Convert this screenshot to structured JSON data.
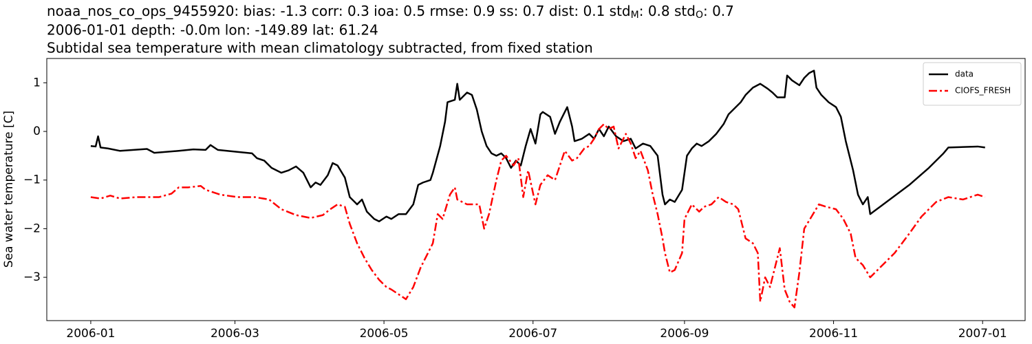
{
  "chart_data": {
    "type": "line",
    "title_parts": [
      "noaa_nos_co_ops_9455920: bias: -1.3  corr: 0.3  ioa: 0.5  rmse: 0.9  ss: 0.7  dist: 0.1  std",
      "M",
      ": 0.8  std",
      "O",
      ": 0.7"
    ],
    "subtitle": "2006-01-01 depth: -0.0m lon: -149.89 lat: 61.24",
    "caption": "Subtidal sea temperature with mean climatology subtracted, from fixed station",
    "y_label": "Sea water temperature [C]",
    "xlim": [
      -18,
      382.4
    ],
    "xticks": [
      {
        "value": 0,
        "label": "2006-01"
      },
      {
        "value": 59,
        "label": "2006-03"
      },
      {
        "value": 120,
        "label": "2006-05"
      },
      {
        "value": 181,
        "label": "2006-07"
      },
      {
        "value": 243,
        "label": "2006-09"
      },
      {
        "value": 304,
        "label": "2006-11"
      },
      {
        "value": 365,
        "label": "2007-01"
      }
    ],
    "ylim": [
      -3.89,
      1.5
    ],
    "yticks": [
      {
        "value": -3,
        "label": "−3"
      },
      {
        "value": -2,
        "label": "−2"
      },
      {
        "value": -1,
        "label": "−1"
      },
      0,
      1
    ],
    "grid": false,
    "legend": "upper right",
    "series": [
      {
        "name": "data",
        "color": "#000000",
        "style": "solid",
        "x": [
          0,
          2,
          3,
          4,
          7,
          12,
          23,
          26,
          36,
          42,
          47,
          49,
          52,
          60,
          66,
          68,
          71,
          74,
          78,
          81,
          84,
          87,
          90,
          92,
          94,
          97,
          99,
          101,
          104,
          106,
          108,
          109,
          111,
          113,
          116,
          118,
          121,
          123,
          126,
          129,
          132,
          134,
          136,
          139,
          140,
          143,
          145,
          146,
          149,
          150,
          151,
          154,
          156,
          158,
          160,
          162,
          164,
          166,
          168,
          170,
          172,
          174,
          176,
          178,
          180,
          182,
          184,
          185,
          188,
          190,
          192,
          193,
          195,
          197,
          198,
          201,
          204,
          206,
          208,
          210,
          212,
          215,
          218,
          221,
          223,
          226,
          229,
          232,
          234,
          235,
          237,
          239,
          242,
          244,
          246,
          248,
          250,
          253,
          256,
          259,
          261,
          266,
          268,
          271,
          274,
          277,
          279,
          281,
          284,
          285,
          287,
          290,
          292,
          294,
          296,
          297,
          299,
          302,
          305,
          307,
          309,
          312,
          314,
          316,
          318,
          319,
          323,
          335,
          343,
          349,
          351,
          363,
          366
        ],
        "values": [
          -0.3,
          -0.31,
          -0.1,
          -0.33,
          -0.35,
          -0.4,
          -0.36,
          -0.44,
          -0.4,
          -0.37,
          -0.38,
          -0.28,
          -0.38,
          -0.42,
          -0.45,
          -0.55,
          -0.6,
          -0.75,
          -0.85,
          -0.8,
          -0.72,
          -0.85,
          -1.15,
          -1.05,
          -1.1,
          -0.9,
          -0.65,
          -0.7,
          -0.95,
          -1.35,
          -1.45,
          -1.5,
          -1.4,
          -1.65,
          -1.8,
          -1.85,
          -1.75,
          -1.8,
          -1.7,
          -1.7,
          -1.5,
          -1.1,
          -1.05,
          -1.0,
          -0.85,
          -0.3,
          0.2,
          0.6,
          0.65,
          0.98,
          0.65,
          0.8,
          0.75,
          0.45,
          0.0,
          -0.3,
          -0.45,
          -0.5,
          -0.45,
          -0.55,
          -0.75,
          -0.6,
          -0.7,
          -0.3,
          0.05,
          -0.25,
          0.35,
          0.4,
          0.3,
          -0.05,
          0.2,
          0.3,
          0.5,
          0.1,
          -0.2,
          -0.15,
          -0.05,
          -0.15,
          0.05,
          -0.1,
          0.1,
          -0.1,
          -0.2,
          -0.15,
          -0.35,
          -0.25,
          -0.3,
          -0.5,
          -1.3,
          -1.5,
          -1.4,
          -1.45,
          -1.2,
          -0.5,
          -0.35,
          -0.25,
          -0.3,
          -0.2,
          -0.05,
          0.15,
          0.35,
          0.6,
          0.75,
          0.9,
          0.98,
          0.88,
          0.8,
          0.7,
          0.7,
          1.15,
          1.05,
          0.95,
          1.1,
          1.2,
          1.25,
          0.9,
          0.75,
          0.6,
          0.5,
          0.3,
          -0.2,
          -0.8,
          -1.3,
          -1.5,
          -1.35,
          -1.7,
          -1.55,
          -1.1,
          -0.75,
          -0.45,
          -0.33,
          -0.31,
          -0.33
        ]
      },
      {
        "name": "CIOFS_FRESH",
        "color": "#ff0000",
        "style": "dashdot",
        "x": [
          0,
          4,
          8,
          12,
          19,
          28,
          33,
          36,
          40,
          45,
          47,
          53,
          60,
          67,
          73,
          78,
          84,
          90,
          95,
          98,
          101,
          104,
          106,
          109,
          112,
          115,
          118,
          121,
          123,
          126,
          129,
          132,
          135,
          137,
          140,
          142,
          144,
          147,
          149,
          150,
          154,
          159,
          161,
          163,
          166,
          168,
          170,
          173,
          175,
          177,
          179,
          182,
          184,
          187,
          190,
          192,
          194,
          197,
          199,
          202,
          204,
          206,
          208,
          210,
          212,
          214,
          216,
          219,
          221,
          223,
          225,
          228,
          230,
          232,
          234,
          235,
          237,
          239,
          242,
          243,
          246,
          249,
          251,
          254,
          257,
          260,
          263,
          265,
          268,
          271,
          273,
          274,
          276,
          278,
          280,
          282,
          284,
          286,
          288,
          290,
          292,
          295,
          298,
          301,
          305,
          308,
          311,
          313,
          316,
          319,
          323,
          329,
          335,
          340,
          346,
          351,
          357,
          363,
          366
        ],
        "values": [
          -1.35,
          -1.38,
          -1.32,
          -1.38,
          -1.35,
          -1.35,
          -1.28,
          -1.15,
          -1.15,
          -1.12,
          -1.2,
          -1.3,
          -1.35,
          -1.35,
          -1.4,
          -1.6,
          -1.72,
          -1.78,
          -1.72,
          -1.6,
          -1.5,
          -1.55,
          -1.9,
          -2.3,
          -2.6,
          -2.85,
          -3.05,
          -3.2,
          -3.25,
          -3.35,
          -3.45,
          -3.2,
          -2.8,
          -2.6,
          -2.3,
          -1.7,
          -1.8,
          -1.3,
          -1.15,
          -1.4,
          -1.5,
          -1.5,
          -2.0,
          -1.7,
          -1.0,
          -0.6,
          -0.5,
          -0.7,
          -0.55,
          -1.35,
          -0.8,
          -1.5,
          -1.1,
          -0.9,
          -1.0,
          -0.7,
          -0.4,
          -0.6,
          -0.55,
          -0.35,
          -0.3,
          -0.15,
          0.05,
          0.15,
          0.05,
          0.1,
          -0.35,
          -0.05,
          -0.25,
          -0.55,
          -0.4,
          -0.8,
          -1.3,
          -1.7,
          -2.2,
          -2.5,
          -2.9,
          -2.85,
          -2.5,
          -1.8,
          -1.5,
          -1.65,
          -1.55,
          -1.5,
          -1.35,
          -1.45,
          -1.5,
          -1.6,
          -2.2,
          -2.3,
          -2.5,
          -3.5,
          -3.0,
          -3.2,
          -2.8,
          -2.4,
          -3.25,
          -3.5,
          -3.62,
          -2.9,
          -2.0,
          -1.75,
          -1.5,
          -1.55,
          -1.6,
          -1.8,
          -2.1,
          -2.6,
          -2.75,
          -3.0,
          -2.8,
          -2.5,
          -2.1,
          -1.75,
          -1.45,
          -1.35,
          -1.4,
          -1.3,
          -1.35
        ]
      }
    ]
  }
}
